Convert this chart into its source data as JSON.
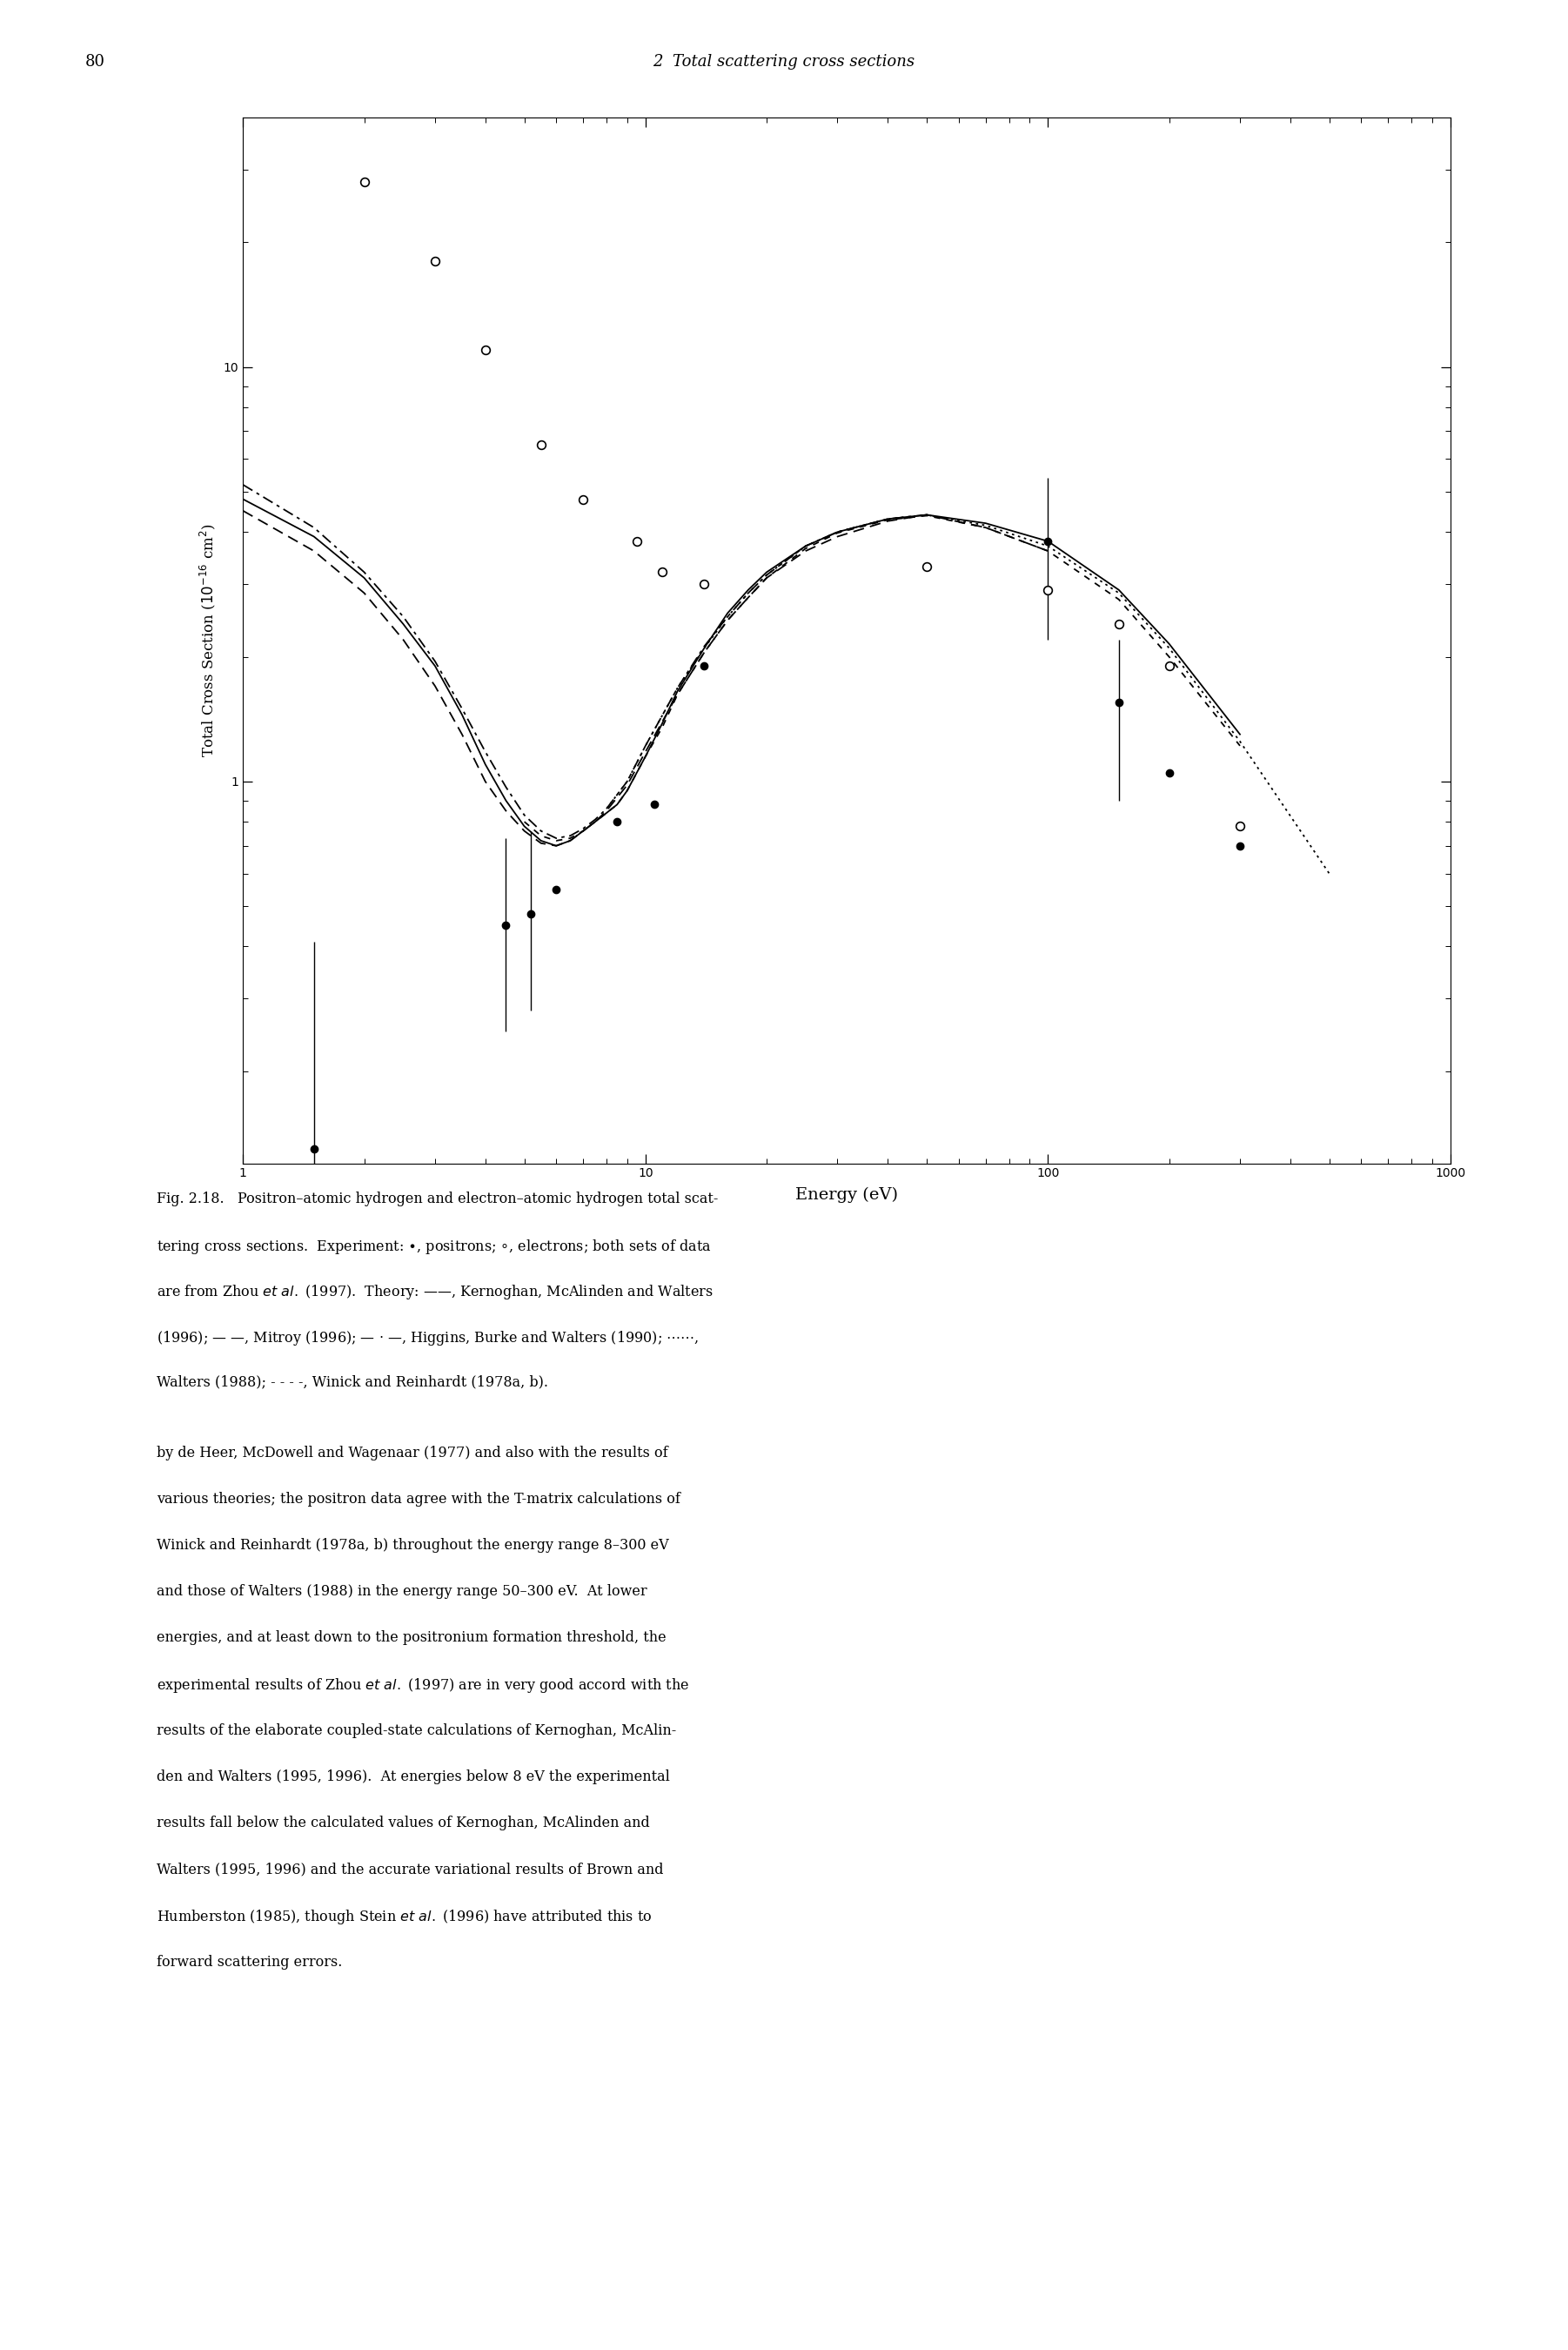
{
  "page_number": "80",
  "page_title": "2  Total scattering cross sections",
  "xlabel": "Energy (eV)",
  "xlim": [
    1,
    1000
  ],
  "ylim": [
    0.12,
    40
  ],
  "positron_data": {
    "x": [
      1.5,
      4.5,
      5.2,
      6.0,
      8.5,
      10.5,
      14.0,
      100.0,
      150.0,
      200.0,
      300.0
    ],
    "y": [
      0.13,
      0.45,
      0.48,
      0.55,
      0.8,
      0.88,
      1.9,
      3.8,
      1.55,
      1.05,
      0.7
    ],
    "yerr_low": [
      0.1,
      0.2,
      0.2,
      0.0,
      0.0,
      0.0,
      0.0,
      1.6,
      0.65,
      0.0,
      0.0
    ],
    "yerr_high": [
      0.28,
      0.28,
      0.28,
      0.0,
      0.0,
      0.0,
      0.0,
      1.6,
      0.65,
      0.0,
      0.0
    ]
  },
  "electron_data": {
    "x": [
      2.0,
      3.0,
      4.0,
      5.5,
      7.0,
      9.5,
      11.0,
      14.0,
      50.0,
      100.0,
      150.0,
      200.0,
      300.0
    ],
    "y": [
      28.0,
      18.0,
      11.0,
      6.5,
      4.8,
      3.8,
      3.2,
      3.0,
      3.3,
      2.9,
      2.4,
      1.9,
      0.78
    ]
  },
  "theory_kernoghan": {
    "x": [
      1.0,
      1.5,
      2.0,
      2.5,
      3.0,
      3.5,
      4.0,
      4.5,
      5.0,
      5.5,
      6.0,
      6.5,
      7.0,
      7.5,
      8.0,
      8.5,
      9.0,
      10.0,
      11.0,
      12.0,
      14.0,
      16.0,
      18.0,
      20.0,
      25.0,
      30.0,
      40.0,
      50.0,
      70.0,
      100.0,
      150.0,
      200.0,
      300.0
    ],
    "y": [
      4.8,
      3.9,
      3.1,
      2.4,
      1.9,
      1.45,
      1.1,
      0.9,
      0.78,
      0.72,
      0.7,
      0.72,
      0.76,
      0.8,
      0.84,
      0.88,
      0.95,
      1.15,
      1.38,
      1.65,
      2.1,
      2.55,
      2.9,
      3.2,
      3.7,
      4.0,
      4.3,
      4.4,
      4.2,
      3.8,
      2.9,
      2.15,
      1.3
    ]
  },
  "theory_mitroy": {
    "x": [
      1.0,
      1.5,
      2.0,
      2.5,
      3.0,
      3.5,
      4.0,
      4.5,
      5.0,
      5.5,
      6.0,
      6.5,
      7.0,
      7.5,
      8.0,
      9.0,
      10.0,
      12.0,
      14.0,
      16.0,
      18.0,
      20.0,
      25.0,
      30.0,
      40.0,
      50.0,
      70.0,
      100.0
    ],
    "y": [
      4.5,
      3.6,
      2.85,
      2.2,
      1.7,
      1.3,
      1.0,
      0.85,
      0.76,
      0.71,
      0.7,
      0.72,
      0.76,
      0.8,
      0.85,
      0.98,
      1.18,
      1.62,
      2.05,
      2.45,
      2.78,
      3.1,
      3.6,
      3.9,
      4.25,
      4.4,
      4.1,
      3.6
    ]
  },
  "theory_higgins": {
    "x": [
      1.0,
      1.5,
      2.0,
      2.5,
      3.0,
      3.5,
      4.0,
      4.5,
      5.0,
      5.5,
      6.0,
      6.5,
      7.0,
      7.5,
      8.0,
      9.0,
      10.0,
      12.0,
      14.0,
      16.0,
      18.0,
      20.0,
      25.0,
      30.0,
      40.0,
      50.0
    ],
    "y": [
      5.2,
      4.1,
      3.2,
      2.5,
      1.95,
      1.5,
      1.18,
      0.97,
      0.83,
      0.76,
      0.73,
      0.74,
      0.77,
      0.81,
      0.86,
      1.0,
      1.22,
      1.68,
      2.12,
      2.5,
      2.85,
      3.15,
      3.7,
      4.0,
      4.3,
      4.4
    ]
  },
  "theory_walters_dotted": {
    "x": [
      8.0,
      9.0,
      10.0,
      12.0,
      14.0,
      16.0,
      18.0,
      20.0,
      25.0,
      30.0,
      40.0,
      50.0,
      70.0,
      100.0,
      150.0,
      200.0,
      300.0,
      500.0
    ],
    "y": [
      0.86,
      1.0,
      1.22,
      1.68,
      2.1,
      2.5,
      2.85,
      3.15,
      3.7,
      4.0,
      4.3,
      4.4,
      4.15,
      3.7,
      2.85,
      2.1,
      1.25,
      0.6
    ]
  },
  "theory_winick_dashed": {
    "x": [
      5.0,
      5.5,
      6.0,
      6.5,
      7.0,
      7.5,
      8.0,
      8.5,
      9.0,
      10.0,
      11.0,
      12.0,
      14.0,
      16.0,
      18.0,
      20.0,
      25.0,
      30.0,
      40.0,
      50.0,
      70.0,
      100.0,
      150.0,
      200.0,
      300.0
    ],
    "y": [
      0.8,
      0.74,
      0.72,
      0.73,
      0.76,
      0.8,
      0.84,
      0.88,
      0.95,
      1.15,
      1.35,
      1.62,
      2.05,
      2.45,
      2.78,
      3.1,
      3.65,
      3.98,
      4.28,
      4.38,
      4.1,
      3.6,
      2.75,
      2.0,
      1.22
    ]
  },
  "caption": [
    [
      "Fig. 2.18.",
      "   Positron–atomic hydrogen and electron–atomic hydrogen total scat-"
    ],
    [
      "tering cross sections.",
      "  Experiment: ●, positrons; ○, electrons; both sets of data"
    ],
    [
      "are from Zhou ",
      "et al.",
      " (1997).  Theory: ——, Kernoghan, McAlinden and Walters"
    ],
    [
      "(1996); — —, Mitroy (1996); — · —, Higgins, Burke and Walters (1990); ⋯⋯⋯⋯,",
      ""
    ],
    [
      "Walters (1988); - - - -, Winick and Reinhardt (1978a, b).",
      ""
    ]
  ],
  "body_text": [
    "by de Heer, McDowell and Wagenaar (1977) and also with the results of",
    "various theories; the positron data agree with the T-matrix calculations of",
    "Winick and Reinhardt (1978a, b) throughout the energy range 8–300 eV",
    "and those of Walters (1988) in the energy range 50–300 eV.  At lower",
    "energies, and at least down to the positronium formation threshold, the",
    [
      "experimental results of Zhou ",
      "et al.",
      " (1997) are in very good accord with the"
    ],
    "results of the elaborate coupled-state calculations of Kernoghan, McAlin-",
    "den and Walters (1995, 1996).  At energies below 8 eV the experimental",
    "results fall below the calculated values of Kernoghan, McAlinden and",
    "Walters (1995, 1996) and the accurate variational results of Brown and",
    [
      "Humberston (1985), though Stein ",
      "et al.",
      " (1996) have attributed this to"
    ],
    "forward scattering errors."
  ]
}
